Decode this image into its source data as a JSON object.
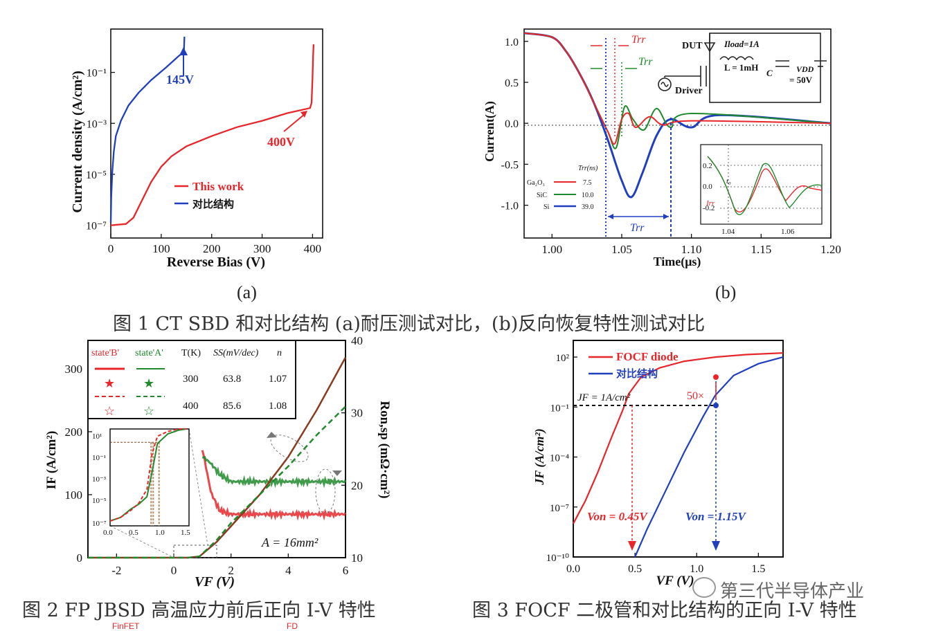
{
  "captions": {
    "sub_a": "(a)",
    "sub_b": "(b)",
    "fig1": "图 1 CT SBD 和对比结构 (a)耐压测试对比，(b)反向恢复特性测试对比",
    "fig2": "图 2 FP JBSD 高温应力前后正向 I-V 特性",
    "fig3": "图 3 FOCF 二极管和对比结构的正向 I-V 特性",
    "watermark": "第三代半导体产业",
    "bottom_cut_left": "FinFET",
    "bottom_cut_right": "FD"
  },
  "colors": {
    "red": "#e8262a",
    "blue": "#1f3fbf",
    "green": "#1e8a2b",
    "gray": "#808080"
  },
  "chart_data": [
    {
      "id": "fig1a",
      "type": "line",
      "ylabel": "Current density (A/cm²)",
      "xlabel": "Reverse Bias (V)",
      "y_scale": "log",
      "xlim": [
        0,
        420
      ],
      "ylim_log10": [
        -7.5,
        0.7
      ],
      "x_ticks": [
        "0",
        "100",
        "200",
        "300",
        "400"
      ],
      "y_ticks": [
        "10⁻⁷",
        "10⁻⁵",
        "10⁻³",
        "10⁻¹"
      ],
      "legend": [
        "This work",
        "对比结构"
      ],
      "annotations": [
        "145V",
        "400V"
      ],
      "series": [
        {
          "name": "This work",
          "color": "red",
          "x": [
            0,
            30,
            45,
            60,
            80,
            100,
            120,
            150,
            200,
            250,
            300,
            350,
            395,
            398,
            400,
            401,
            402
          ],
          "log10y": [
            -7.0,
            -6.95,
            -6.7,
            -6.1,
            -5.3,
            -4.7,
            -4.3,
            -3.9,
            -3.5,
            -3.15,
            -2.9,
            -2.6,
            -2.4,
            -2.2,
            -1.2,
            -0.4,
            0.1
          ]
        },
        {
          "name": "对比结构",
          "color": "blue",
          "x": [
            0,
            1,
            3,
            6,
            10,
            20,
            35,
            55,
            80,
            110,
            135,
            145,
            146
          ],
          "log10y": [
            -6.9,
            -5.9,
            -4.9,
            -4.1,
            -3.5,
            -2.9,
            -2.3,
            -1.8,
            -1.3,
            -0.8,
            -0.35,
            -0.2,
            0.4
          ]
        }
      ]
    },
    {
      "id": "fig1b",
      "type": "line",
      "ylabel": "Current(A)",
      "xlabel": "Time(μs)",
      "xlim": [
        0.98,
        1.2
      ],
      "ylim": [
        -1.4,
        1.15
      ],
      "x_ticks": [
        "1.00",
        "1.05",
        "1.10",
        "1.15",
        "1.20"
      ],
      "y_ticks": [
        "1.0",
        "0.5",
        "0.0",
        "-0.5",
        "-1.0"
      ],
      "legend_header": "Trr(ns)",
      "legend": [
        {
          "name": "Ga₂O₃",
          "value": "7.5",
          "color": "red"
        },
        {
          "name": "SiC",
          "value": "10.0",
          "color": "green"
        },
        {
          "name": "Si",
          "value": "39.0",
          "color": "blue"
        }
      ],
      "annotations": [
        "Trr",
        "Trr",
        "Trr"
      ],
      "circuit_labels": [
        "DUT",
        "Iload=1A",
        "L = 1mH",
        "C",
        "VDD",
        "= 50V",
        "Driver"
      ],
      "inset": {
        "x_ticks": [
          "1.04",
          "1.06"
        ],
        "y_ticks": [
          "0.2",
          "0.0",
          "-0.2"
        ],
        "labels": [
          "t₀",
          "Irr"
        ]
      },
      "series": [
        {
          "name": "Ga₂O₃",
          "color": "red",
          "x": [
            0.98,
            1.0,
            1.01,
            1.02,
            1.03,
            1.04,
            1.045,
            1.05,
            1.055,
            1.06,
            1.07,
            1.08,
            1.1,
            1.2
          ],
          "y": [
            1.1,
            1.05,
            0.88,
            0.6,
            0.25,
            -0.1,
            -0.25,
            0.05,
            0.12,
            -0.05,
            0.08,
            -0.02,
            0.03,
            0.0
          ]
        },
        {
          "name": "SiC",
          "color": "green",
          "x": [
            0.98,
            1.0,
            1.01,
            1.02,
            1.03,
            1.04,
            1.046,
            1.052,
            1.058,
            1.066,
            1.075,
            1.085,
            1.1,
            1.2
          ],
          "y": [
            1.1,
            1.05,
            0.88,
            0.6,
            0.25,
            -0.1,
            -0.3,
            0.2,
            0.05,
            -0.08,
            0.18,
            -0.05,
            0.12,
            0.0
          ]
        },
        {
          "name": "Si",
          "color": "blue",
          "x": [
            0.98,
            1.0,
            1.01,
            1.02,
            1.03,
            1.04,
            1.05,
            1.057,
            1.065,
            1.075,
            1.085,
            1.1,
            1.12,
            1.2
          ],
          "y": [
            1.1,
            1.05,
            0.88,
            0.6,
            0.25,
            -0.2,
            -0.7,
            -0.9,
            -0.6,
            -0.15,
            0.05,
            -0.05,
            0.1,
            0.0
          ]
        }
      ]
    },
    {
      "id": "fig2",
      "type": "line",
      "ylabel_left": "IF (A/cm²)",
      "ylabel_right": "Ron,sp (mΩ·cm²)",
      "xlabel": "VF (V)",
      "xlim": [
        -3,
        6
      ],
      "ylim_left": [
        0,
        345
      ],
      "ylim_right": [
        10,
        40
      ],
      "x_ticks": [
        "-2",
        "0",
        "2",
        "4",
        "6"
      ],
      "y_ticks_left": [
        "0",
        "100",
        "200",
        "300"
      ],
      "y_ticks_right": [
        "10",
        "20",
        "30",
        "40"
      ],
      "annotation": "A = 16mm²",
      "table": {
        "headers": [
          "state'B'",
          "state'A'",
          "T(K)",
          "SS(mV/dec)",
          "n"
        ],
        "rows": [
          [
            "300",
            "63.8",
            "1.07"
          ],
          [
            "400",
            "85.6",
            "1.08"
          ]
        ]
      },
      "inset": {
        "x_ticks": [
          "0.0",
          "0.5",
          "1.0",
          "1.5"
        ],
        "y_ticks": [
          "10¹",
          "10⁻¹",
          "10⁻³",
          "10⁻⁵",
          "10⁻⁷"
        ]
      },
      "series": [
        {
          "name": "300K IF",
          "x": [
            -3,
            0.5,
            0.9,
            1.5,
            2,
            3,
            4,
            5,
            6
          ],
          "y": [
            0,
            0,
            2,
            25,
            50,
            100,
            160,
            235,
            318
          ]
        },
        {
          "name": "400K IF",
          "x": [
            -3,
            0.5,
            0.9,
            1.5,
            2,
            3,
            4,
            5,
            6
          ],
          "y": [
            0,
            0,
            2,
            28,
            55,
            100,
            145,
            195,
            240
          ]
        },
        {
          "name": "300K Ron",
          "x": [
            1.0,
            1.3,
            1.6,
            2,
            3,
            4,
            5,
            6
          ],
          "y_right": [
            25,
            19,
            16.5,
            16,
            16,
            16,
            16,
            16
          ]
        },
        {
          "name": "400K Ron",
          "x": [
            1.0,
            1.3,
            1.6,
            2,
            3,
            4,
            5,
            6
          ],
          "y_right": [
            24,
            23,
            21.5,
            20.5,
            20.5,
            20.5,
            20.5,
            20.5
          ]
        }
      ]
    },
    {
      "id": "fig3",
      "type": "line",
      "ylabel": "JF (A/cm²)",
      "xlabel": "VF (V)",
      "y_scale": "log",
      "xlim": [
        0,
        1.7
      ],
      "ylim_log10": [
        -10,
        3
      ],
      "x_ticks": [
        "0.0",
        "0.5",
        "1.0",
        "1.5"
      ],
      "y_ticks": [
        "10²",
        "10⁻¹",
        "10⁻⁴",
        "10⁻⁷",
        "10⁻¹⁰"
      ],
      "legend": [
        "FOCF diode",
        "对比结构"
      ],
      "annotations": [
        "JF = 1A/cm²",
        "50×",
        "Von = 0.45V",
        "Von = 1.15V"
      ],
      "series": [
        {
          "name": "FOCF diode",
          "color": "red",
          "x": [
            0,
            0.1,
            0.2,
            0.3,
            0.4,
            0.45,
            0.55,
            0.7,
            0.9,
            1.15,
            1.4,
            1.7
          ],
          "log10y": [
            -8,
            -6.6,
            -4.9,
            -3.0,
            -1.2,
            -0.2,
            0.8,
            1.35,
            1.75,
            2.0,
            2.15,
            2.25
          ]
        },
        {
          "name": "对比结构",
          "color": "blue",
          "x": [
            0.5,
            0.6,
            0.75,
            0.9,
            1.05,
            1.15,
            1.3,
            1.5,
            1.7
          ],
          "log10y": [
            -10,
            -8.3,
            -6.0,
            -3.7,
            -1.6,
            -0.3,
            0.9,
            1.6,
            2.0
          ]
        }
      ]
    }
  ]
}
